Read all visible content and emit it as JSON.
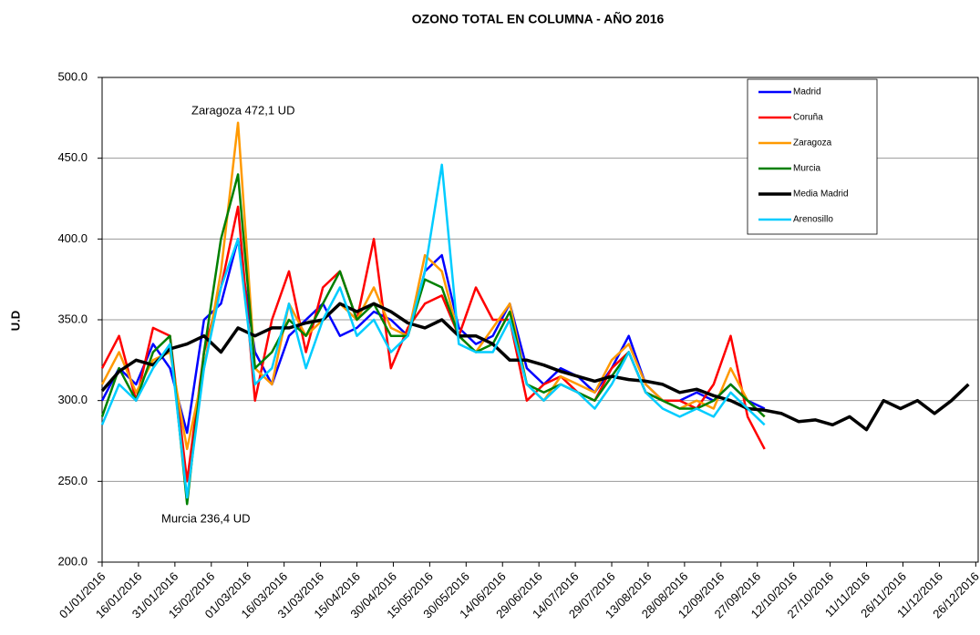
{
  "chart_data": {
    "type": "line",
    "title": "OZONO TOTAL EN COLUMNA  -  AÑO  2016",
    "y_label": "U.D",
    "annotations": [
      "Zaragoza 472,1 UD",
      "Murcia 236,4 UD"
    ],
    "legend": "top-right",
    "grid": true,
    "xlim": [
      "01/01/2016",
      "27/12/2016"
    ],
    "xticks": [
      "01/01/2016",
      "16/01/2016",
      "31/01/2016",
      "15/02/2016",
      "01/03/2016",
      "16/03/2016",
      "31/03/2016",
      "15/04/2016",
      "30/04/2016",
      "15/05/2016",
      "30/05/2016",
      "14/06/2016",
      "29/06/2016",
      "14/07/2016",
      "29/07/2016",
      "13/08/2016",
      "28/08/2016",
      "12/09/2016",
      "27/09/2016",
      "12/10/2016",
      "27/10/2016",
      "11/11/2016",
      "26/11/2016",
      "11/12/2016",
      "26/12/2016"
    ],
    "ylim": [
      200,
      500
    ],
    "yticks": [
      {
        "value": 200,
        "label": "200.0"
      },
      {
        "value": 250,
        "label": "250.0"
      },
      {
        "value": 300,
        "label": "300.0"
      },
      {
        "value": 350,
        "label": "350.0"
      },
      {
        "value": 400,
        "label": "400.0"
      },
      {
        "value": 450,
        "label": "450.0"
      },
      {
        "value": 500,
        "label": "500.0"
      }
    ],
    "x": [
      "01/01/2016",
      "08/01/2016",
      "15/01/2016",
      "22/01/2016",
      "29/01/2016",
      "05/02/2016",
      "12/02/2016",
      "19/02/2016",
      "26/02/2016",
      "04/03/2016",
      "11/03/2016",
      "18/03/2016",
      "25/03/2016",
      "01/04/2016",
      "08/04/2016",
      "15/04/2016",
      "22/04/2016",
      "29/04/2016",
      "06/05/2016",
      "13/05/2016",
      "20/05/2016",
      "27/05/2016",
      "03/06/2016",
      "10/06/2016",
      "17/06/2016",
      "24/06/2016",
      "01/07/2016",
      "08/07/2016",
      "15/07/2016",
      "22/07/2016",
      "29/07/2016",
      "05/08/2016",
      "12/08/2016",
      "19/08/2016",
      "26/08/2016",
      "02/09/2016",
      "09/09/2016",
      "16/09/2016",
      "23/09/2016",
      "30/09/2016",
      "07/10/2016",
      "14/10/2016",
      "21/10/2016",
      "28/10/2016",
      "04/11/2016",
      "11/11/2016",
      "18/11/2016",
      "25/11/2016",
      "02/12/2016",
      "09/12/2016",
      "16/12/2016",
      "23/12/2016"
    ],
    "series": [
      {
        "name": "Madrid",
        "color": "#0000ff",
        "values": [
          300,
          320,
          310,
          335,
          320,
          280,
          350,
          360,
          400,
          330,
          310,
          340,
          350,
          360,
          340,
          345,
          355,
          350,
          340,
          380,
          390,
          345,
          335,
          340,
          360,
          320,
          310,
          320,
          315,
          305,
          320,
          340,
          310,
          300,
          300,
          305,
          300,
          310,
          300,
          295,
          null,
          null,
          null,
          null,
          null,
          null,
          null,
          null,
          null,
          null,
          null,
          null
        ]
      },
      {
        "name": "Coruña",
        "color": "#ff0000",
        "values": [
          320,
          340,
          300,
          345,
          340,
          250,
          330,
          370,
          420,
          300,
          350,
          380,
          330,
          370,
          380,
          350,
          400,
          320,
          345,
          360,
          365,
          340,
          370,
          350,
          350,
          300,
          310,
          315,
          305,
          300,
          320,
          330,
          305,
          300,
          300,
          295,
          310,
          340,
          290,
          270,
          null,
          null,
          null,
          null,
          null,
          null,
          null,
          null,
          null,
          null,
          null,
          null
        ]
      },
      {
        "name": "Zaragoza",
        "color": "#ff9900",
        "values": [
          310,
          330,
          305,
          325,
          330,
          270,
          320,
          380,
          472,
          320,
          310,
          360,
          340,
          350,
          360,
          350,
          370,
          345,
          340,
          390,
          380,
          340,
          330,
          345,
          360,
          310,
          300,
          315,
          310,
          305,
          325,
          335,
          310,
          300,
          295,
          300,
          295,
          320,
          300,
          290,
          null,
          null,
          null,
          null,
          null,
          null,
          null,
          null,
          null,
          null,
          null,
          null
        ]
      },
      {
        "name": "Murcia",
        "color": "#008000",
        "values": [
          290,
          320,
          300,
          330,
          340,
          236,
          330,
          400,
          440,
          320,
          330,
          350,
          340,
          360,
          380,
          350,
          360,
          340,
          340,
          375,
          370,
          340,
          330,
          335,
          355,
          310,
          305,
          310,
          305,
          300,
          315,
          330,
          305,
          300,
          295,
          295,
          300,
          310,
          300,
          290,
          null,
          null,
          null,
          null,
          null,
          null,
          null,
          null,
          null,
          null,
          null,
          null
        ]
      },
      {
        "name": "Media Madrid",
        "color": "#000000",
        "values": [
          306,
          318,
          325,
          322,
          332,
          335,
          340,
          330,
          345,
          340,
          345,
          345,
          348,
          350,
          360,
          355,
          360,
          355,
          348,
          345,
          350,
          340,
          340,
          335,
          325,
          325,
          322,
          318,
          315,
          312,
          315,
          313,
          312,
          310,
          305,
          307,
          303,
          300,
          295,
          294,
          292,
          287,
          288,
          285,
          290,
          282,
          300,
          295,
          300,
          292,
          300,
          310
        ]
      },
      {
        "name": "Arenosillo",
        "color": "#00ccff",
        "values": [
          285,
          310,
          300,
          320,
          335,
          240,
          320,
          370,
          400,
          310,
          320,
          360,
          320,
          350,
          370,
          340,
          350,
          330,
          340,
          380,
          446,
          335,
          330,
          330,
          350,
          310,
          300,
          310,
          305,
          295,
          310,
          330,
          305,
          295,
          290,
          295,
          290,
          305,
          295,
          285,
          null,
          null,
          null,
          null,
          null,
          null,
          null,
          null,
          null,
          null,
          null,
          null
        ]
      }
    ]
  }
}
